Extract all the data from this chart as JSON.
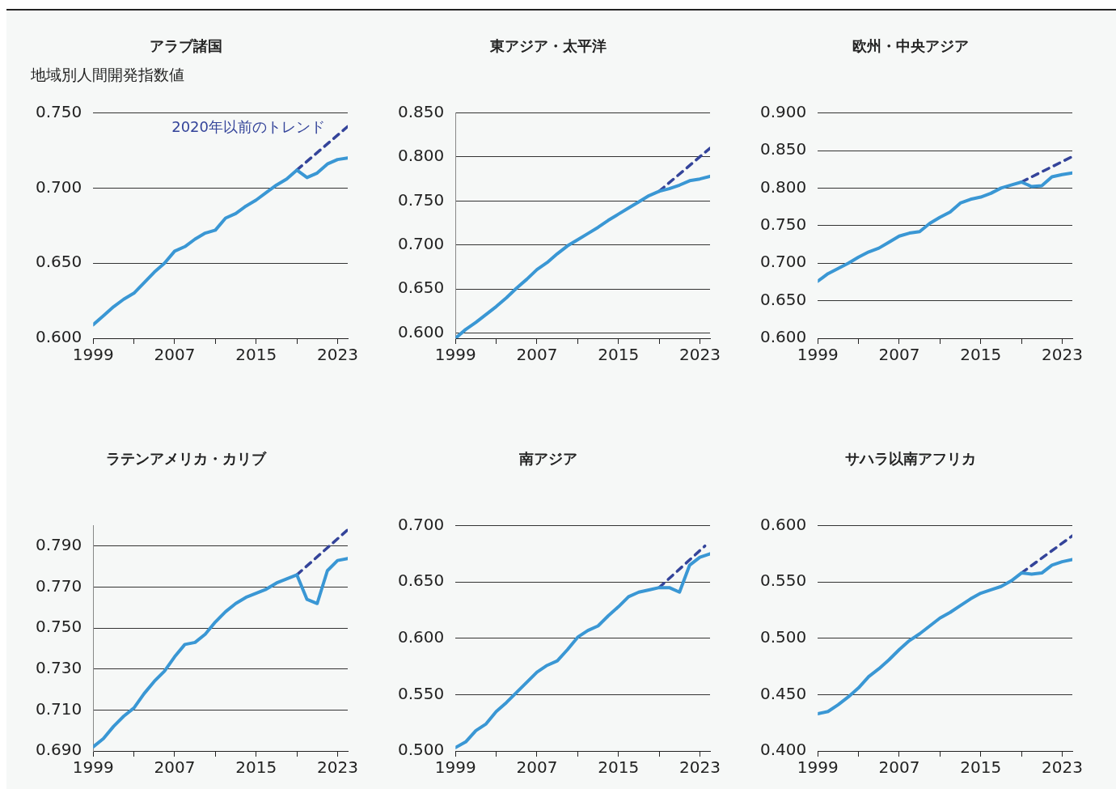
{
  "chart_data": [
    {
      "type": "line",
      "title": "アラブ諸国",
      "ylabel": "地域別人間開発指数値",
      "x": [
        1999,
        2000,
        2001,
        2002,
        2003,
        2004,
        2005,
        2006,
        2007,
        2008,
        2009,
        2010,
        2011,
        2012,
        2013,
        2014,
        2015,
        2016,
        2017,
        2018,
        2019,
        2020,
        2021,
        2022,
        2023,
        2024
      ],
      "xlim": [
        1999,
        2024
      ],
      "xticks": [
        1999,
        {
          "value": 2003,
          "label": null
        },
        2007,
        {
          "value": 2011,
          "label": null
        },
        2015,
        {
          "value": 2019,
          "label": null
        },
        2023
      ],
      "ylim": [
        0.6,
        0.75
      ],
      "yticks": [
        {
          "value": 0.6,
          "label": "0.600"
        },
        {
          "value": 0.65,
          "label": "0.650"
        },
        {
          "value": 0.7,
          "label": "0.700"
        },
        {
          "value": 0.75,
          "label": "0.750"
        }
      ],
      "grid": "y",
      "series": [
        {
          "color": "#3a97d4",
          "values": [
            0.609,
            0.615,
            0.621,
            0.626,
            0.63,
            0.637,
            0.644,
            0.65,
            0.658,
            0.661,
            0.666,
            0.67,
            0.672,
            0.68,
            0.683,
            0.688,
            0.692,
            0.697,
            0.702,
            0.706,
            0.712,
            0.707,
            0.71,
            0.716,
            0.719,
            0.72
          ]
        },
        {
          "name": "2020年以前のトレンド",
          "color": "#34449a",
          "line_style": "dashed",
          "x": [
            2019,
            2024
          ],
          "values": [
            0.712,
            0.741
          ]
        }
      ]
    },
    {
      "type": "line",
      "title": "東アジア・太平洋",
      "x": [
        1999,
        2000,
        2001,
        2002,
        2003,
        2004,
        2005,
        2006,
        2007,
        2008,
        2009,
        2010,
        2011,
        2012,
        2013,
        2014,
        2015,
        2016,
        2017,
        2018,
        2019,
        2020,
        2021,
        2022,
        2023,
        2024
      ],
      "xlim": [
        1999,
        2024
      ],
      "xticks": [
        1999,
        {
          "value": 2003,
          "label": null
        },
        2007,
        {
          "value": 2011,
          "label": null
        },
        2015,
        {
          "value": 2019,
          "label": null
        },
        2023
      ],
      "ylim": [
        0.594,
        0.85
      ],
      "yticks": [
        {
          "value": 0.6,
          "label": "0.600"
        },
        {
          "value": 0.65,
          "label": "0.650"
        },
        {
          "value": 0.7,
          "label": "0.700"
        },
        {
          "value": 0.75,
          "label": "0.750"
        },
        {
          "value": 0.8,
          "label": "0.800"
        },
        {
          "value": 0.85,
          "label": "0.850"
        }
      ],
      "grid": "y",
      "series": [
        {
          "color": "#3a97d4",
          "values": [
            0.594,
            0.604,
            0.612,
            0.621,
            0.63,
            0.64,
            0.651,
            0.661,
            0.672,
            0.68,
            0.69,
            0.699,
            0.706,
            0.713,
            0.72,
            0.728,
            0.735,
            0.742,
            0.749,
            0.756,
            0.761,
            0.764,
            0.768,
            0.773,
            0.775,
            0.778
          ]
        },
        {
          "color": "#34449a",
          "line_style": "dashed",
          "x": [
            2019,
            2024
          ],
          "values": [
            0.761,
            0.81
          ]
        }
      ]
    },
    {
      "type": "line",
      "title": "欧州・中央アジア",
      "x": [
        1999,
        2000,
        2001,
        2002,
        2003,
        2004,
        2005,
        2006,
        2007,
        2008,
        2009,
        2010,
        2011,
        2012,
        2013,
        2014,
        2015,
        2016,
        2017,
        2018,
        2019,
        2020,
        2021,
        2022,
        2023,
        2024
      ],
      "xlim": [
        1999,
        2024
      ],
      "xticks": [
        1999,
        {
          "value": 2003,
          "label": null
        },
        2007,
        {
          "value": 2011,
          "label": null
        },
        2015,
        {
          "value": 2019,
          "label": null
        },
        2023
      ],
      "ylim": [
        0.6,
        0.9
      ],
      "yticks": [
        {
          "value": 0.6,
          "label": "0.600"
        },
        {
          "value": 0.65,
          "label": "0.650"
        },
        {
          "value": 0.7,
          "label": "0.700"
        },
        {
          "value": 0.75,
          "label": "0.750"
        },
        {
          "value": 0.8,
          "label": "0.800"
        },
        {
          "value": 0.85,
          "label": "0.850"
        },
        {
          "value": 0.9,
          "label": "0.900"
        }
      ],
      "grid": "y",
      "series": [
        {
          "color": "#3a97d4",
          "values": [
            0.676,
            0.686,
            0.693,
            0.7,
            0.708,
            0.715,
            0.72,
            0.728,
            0.736,
            0.74,
            0.742,
            0.753,
            0.761,
            0.768,
            0.78,
            0.785,
            0.788,
            0.793,
            0.8,
            0.804,
            0.808,
            0.802,
            0.803,
            0.815,
            0.818,
            0.82
          ]
        },
        {
          "color": "#34449a",
          "line_style": "dashed",
          "x": [
            2019,
            2024
          ],
          "values": [
            0.808,
            0.842
          ]
        }
      ]
    },
    {
      "type": "line",
      "title": "ラテンアメリカ・カリブ",
      "x": [
        1999,
        2000,
        2001,
        2002,
        2003,
        2004,
        2005,
        2006,
        2007,
        2008,
        2009,
        2010,
        2011,
        2012,
        2013,
        2014,
        2015,
        2016,
        2017,
        2018,
        2019,
        2020,
        2021,
        2022,
        2023,
        2024
      ],
      "xlim": [
        1999,
        2024
      ],
      "xticks": [
        1999,
        {
          "value": 2003,
          "label": null
        },
        2007,
        {
          "value": 2011,
          "label": null
        },
        2015,
        {
          "value": 2019,
          "label": null
        },
        2023
      ],
      "ylim": [
        0.69,
        0.8
      ],
      "yticks": [
        {
          "value": 0.69,
          "label": "0.690"
        },
        {
          "value": 0.71,
          "label": "0.710"
        },
        {
          "value": 0.73,
          "label": "0.730"
        },
        {
          "value": 0.75,
          "label": "0.750"
        },
        {
          "value": 0.77,
          "label": "0.770"
        },
        {
          "value": 0.79,
          "label": "0.790"
        }
      ],
      "grid": "y",
      "series": [
        {
          "color": "#3a97d4",
          "values": [
            0.692,
            0.696,
            0.702,
            0.707,
            0.711,
            0.718,
            0.724,
            0.729,
            0.736,
            0.742,
            0.743,
            0.747,
            0.753,
            0.758,
            0.762,
            0.765,
            0.767,
            0.769,
            0.772,
            0.774,
            0.776,
            0.764,
            0.762,
            0.778,
            0.783,
            0.784
          ]
        },
        {
          "color": "#34449a",
          "line_style": "dashed",
          "x": [
            2019,
            2024
          ],
          "values": [
            0.776,
            0.798
          ]
        }
      ]
    },
    {
      "type": "line",
      "title": "南アジア",
      "x": [
        1999,
        2000,
        2001,
        2002,
        2003,
        2004,
        2005,
        2006,
        2007,
        2008,
        2009,
        2010,
        2011,
        2012,
        2013,
        2014,
        2015,
        2016,
        2017,
        2018,
        2019,
        2020,
        2021,
        2022,
        2023,
        2024
      ],
      "xlim": [
        1999,
        2024
      ],
      "xticks": [
        1999,
        {
          "value": 2003,
          "label": null
        },
        2007,
        {
          "value": 2011,
          "label": null
        },
        2015,
        {
          "value": 2019,
          "label": null
        },
        2023
      ],
      "ylim": [
        0.5,
        0.7
      ],
      "yticks": [
        {
          "value": 0.5,
          "label": "0.500"
        },
        {
          "value": 0.55,
          "label": "0.550"
        },
        {
          "value": 0.6,
          "label": "0.600"
        },
        {
          "value": 0.65,
          "label": "0.650"
        },
        {
          "value": 0.7,
          "label": "0.700"
        }
      ],
      "grid": "y",
      "series": [
        {
          "color": "#3a97d4",
          "values": [
            0.503,
            0.508,
            0.518,
            0.524,
            0.535,
            0.543,
            0.552,
            0.561,
            0.57,
            0.576,
            0.58,
            0.59,
            0.601,
            0.607,
            0.611,
            0.62,
            0.628,
            0.637,
            0.641,
            0.643,
            0.645,
            0.645,
            0.641,
            0.665,
            0.672,
            0.675
          ]
        },
        {
          "color": "#34449a",
          "line_style": "dashed",
          "x": [
            2019,
            2023.5
          ],
          "values": [
            0.645,
            0.682
          ]
        }
      ]
    },
    {
      "type": "line",
      "title": "サハラ以南アフリカ",
      "x": [
        1999,
        2000,
        2001,
        2002,
        2003,
        2004,
        2005,
        2006,
        2007,
        2008,
        2009,
        2010,
        2011,
        2012,
        2013,
        2014,
        2015,
        2016,
        2017,
        2018,
        2019,
        2020,
        2021,
        2022,
        2023,
        2024
      ],
      "xlim": [
        1999,
        2024
      ],
      "xticks": [
        1999,
        {
          "value": 2003,
          "label": null
        },
        2007,
        {
          "value": 2011,
          "label": null
        },
        2015,
        {
          "value": 2019,
          "label": null
        },
        2023
      ],
      "ylim": [
        0.4,
        0.6
      ],
      "yticks": [
        {
          "value": 0.4,
          "label": "0.400"
        },
        {
          "value": 0.45,
          "label": "0.450"
        },
        {
          "value": 0.5,
          "label": "0.500"
        },
        {
          "value": 0.55,
          "label": "0.550"
        },
        {
          "value": 0.6,
          "label": "0.600"
        }
      ],
      "grid": "y",
      "series": [
        {
          "color": "#3a97d4",
          "values": [
            0.433,
            0.435,
            0.441,
            0.448,
            0.456,
            0.466,
            0.473,
            0.481,
            0.49,
            0.498,
            0.504,
            0.511,
            0.518,
            0.523,
            0.529,
            0.535,
            0.54,
            0.543,
            0.546,
            0.551,
            0.558,
            0.557,
            0.558,
            0.565,
            0.568,
            0.57
          ]
        },
        {
          "color": "#34449a",
          "line_style": "dashed",
          "x": [
            2019,
            2024
          ],
          "values": [
            0.558,
            0.591
          ]
        }
      ]
    }
  ]
}
